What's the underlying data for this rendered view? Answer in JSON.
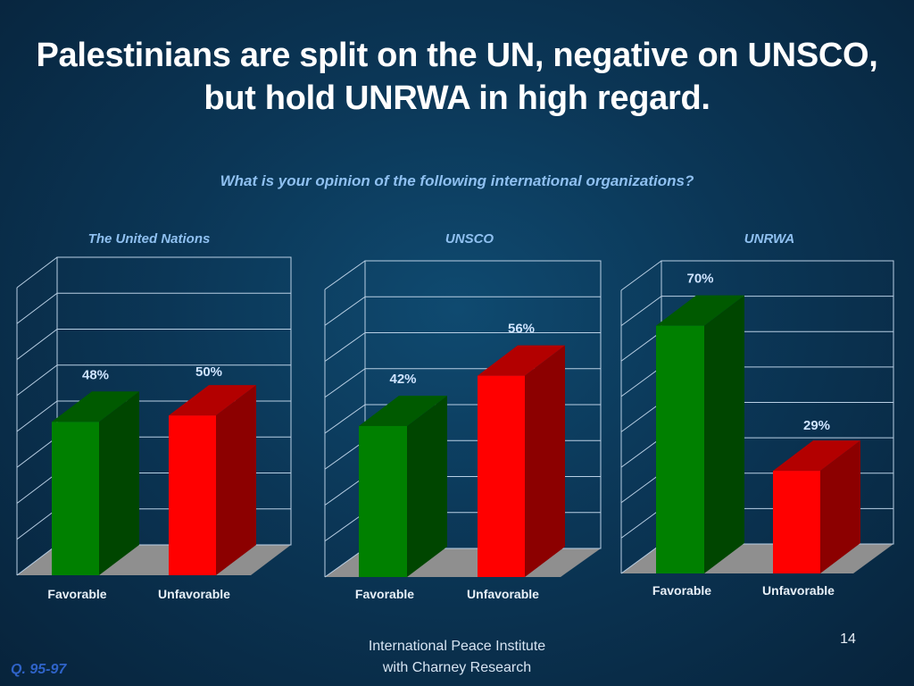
{
  "slide": {
    "title": "Palestinians are split on the UN, negative on UNSCO, but hold UNRWA in high regard.",
    "question": "What is your opinion of the following international organizations?",
    "footer_line1": "International Peace Institute",
    "footer_line2": "with Charney Research",
    "page_number": "14",
    "question_ref": "Q. 95-97"
  },
  "colors": {
    "favorable": "#008000",
    "unfavorable": "#ff0000",
    "chart_title": "#8fc0f0",
    "data_label": "#cfe4ff"
  },
  "chart_data": [
    {
      "type": "bar",
      "title": "The United Nations",
      "categories": [
        "Favorable",
        "Unfavorable"
      ],
      "values": [
        48,
        50
      ],
      "value_labels": [
        "48%",
        "50%"
      ],
      "ylim": [
        0,
        90
      ],
      "grid": true
    },
    {
      "type": "bar",
      "title": "UNSCO",
      "categories": [
        "Favorable",
        "Unfavorable"
      ],
      "values": [
        42,
        56
      ],
      "value_labels": [
        "42%",
        "56%"
      ],
      "ylim": [
        0,
        80
      ],
      "grid": true
    },
    {
      "type": "bar",
      "title": "UNRWA",
      "categories": [
        "Favorable",
        "Unfavorable"
      ],
      "values": [
        70,
        29
      ],
      "value_labels": [
        "70%",
        "29%"
      ],
      "ylim": [
        0,
        80
      ],
      "grid": true
    }
  ]
}
